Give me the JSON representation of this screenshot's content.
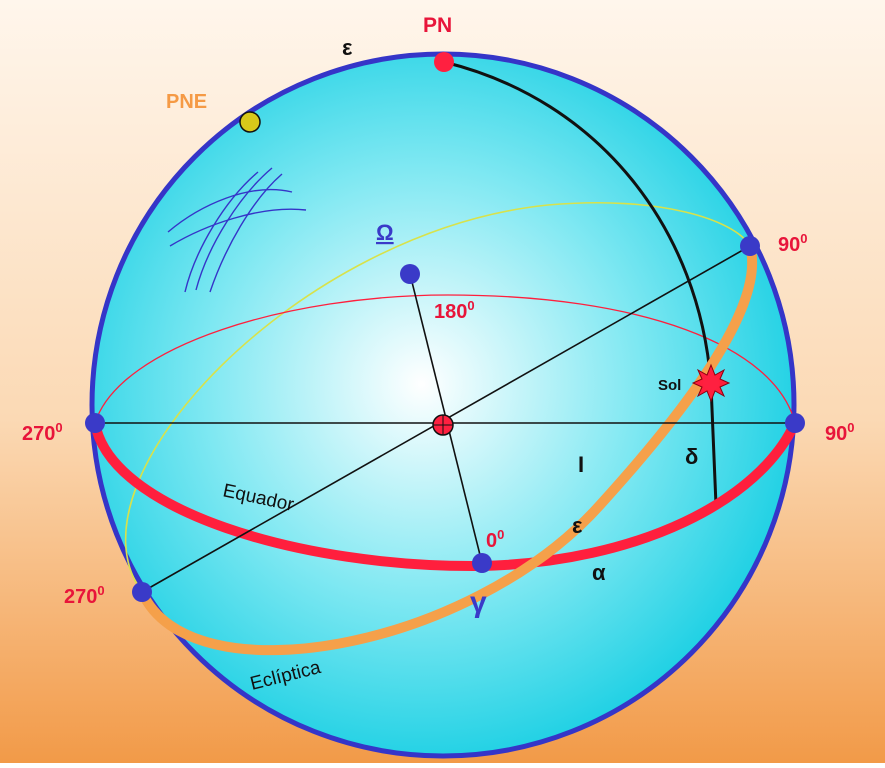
{
  "colors": {
    "sky_top": "#fff6ec",
    "sky_bottom": "#f29a48",
    "sphere_center": "#ffffff",
    "sphere_mid": "#7fe8f2",
    "sphere_edge": "#19cfe3",
    "sphere_outline": "#3535c8",
    "equator": "#ff1f3d",
    "ecliptic": "#f5a04a",
    "ecliptic_thin": "#d8e24a",
    "point_blue": "#3a3ac8",
    "pole_red": "#ff2040",
    "pne_yellow": "#d8c81a",
    "label_red": "#e8153a",
    "label_orange": "#f59a45",
    "label_blue": "#3a3ac8",
    "label_black": "#111111"
  },
  "labels": {
    "pn": "PN",
    "pne": "PNE",
    "epsilon_top": "ε",
    "omega": "Ω",
    "deg_180": "180",
    "deg_90_top": "90",
    "deg_270_left": "270",
    "deg_90_right": "90",
    "deg_0": "0",
    "deg_270_bottom": "270",
    "degree_sup": "0",
    "sol": "Sol",
    "delta": "δ",
    "i_label": "I",
    "epsilon_mid": "ε",
    "alpha": "α",
    "gamma": "γ",
    "equador": "Equador",
    "ecliptica": "Eclíptica"
  },
  "icons": {
    "sun": "sun-burst-icon",
    "center": "center-point-icon"
  }
}
